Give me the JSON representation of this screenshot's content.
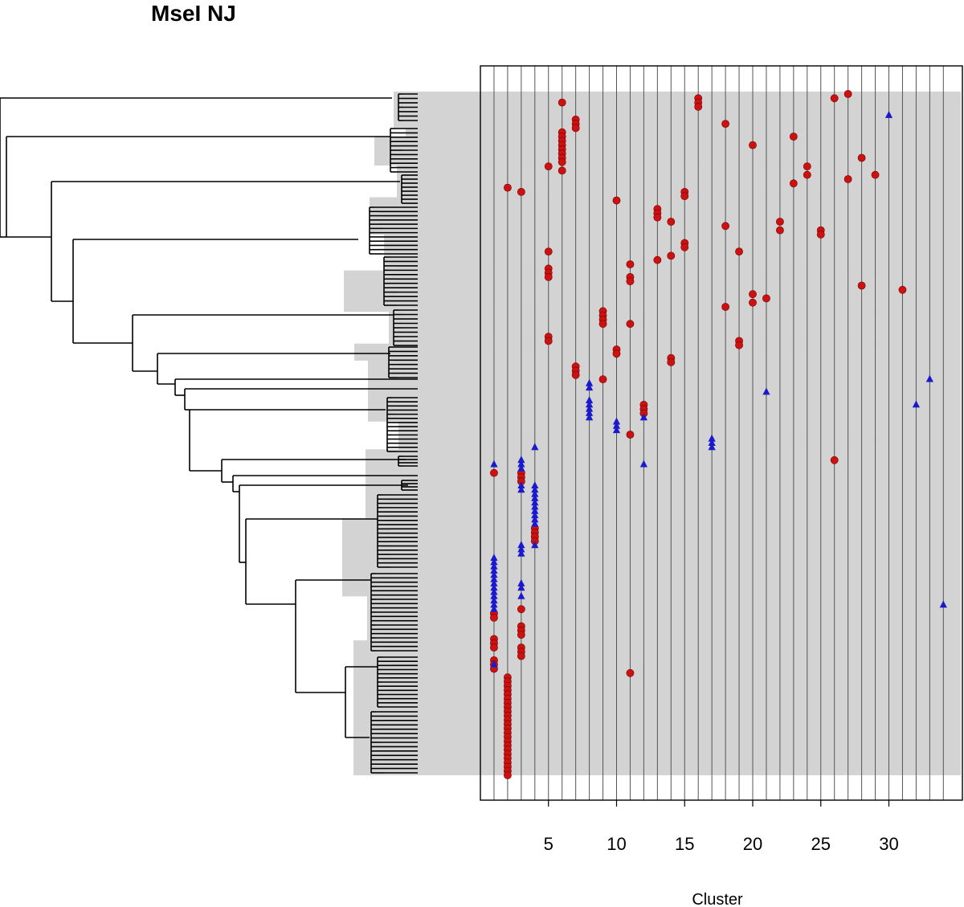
{
  "chart_data": {
    "type": "scatter",
    "title": "MseI NJ",
    "xlabel": "Cluster",
    "ylabel": "",
    "xlim": [
      0,
      35
    ],
    "x_ticks": [
      "5",
      "10",
      "15",
      "20",
      "25",
      "30"
    ],
    "grid": "vertical lines at every integer cluster 1–34",
    "legend": "none",
    "colors": {
      "red_marker": "#cc1111",
      "blue_marker": "#1a1acc",
      "band": "#d3d3d3",
      "grid": "#555555"
    },
    "marker_meaning": {
      "circle": "red",
      "triangle": "blue"
    },
    "y_axis_note": "rows correspond to leaves of the NJ tree (top = leaf 1, bottom = leaf 168)",
    "series": [
      {
        "name": "red circles",
        "marker": "circle",
        "points": [
          [
            6,
            2
          ],
          [
            16,
            1
          ],
          [
            16,
            2
          ],
          [
            16,
            3
          ],
          [
            26,
            1
          ],
          [
            27,
            0
          ],
          [
            7,
            6
          ],
          [
            7,
            7
          ],
          [
            7,
            8
          ],
          [
            18,
            7
          ],
          [
            6,
            9
          ],
          [
            6,
            10
          ],
          [
            6,
            11
          ],
          [
            6,
            12
          ],
          [
            6,
            13
          ],
          [
            6,
            14
          ],
          [
            6,
            15
          ],
          [
            6,
            16
          ],
          [
            20,
            12
          ],
          [
            23,
            10
          ],
          [
            28,
            15
          ],
          [
            24,
            17
          ],
          [
            24,
            19
          ],
          [
            5,
            17
          ],
          [
            6,
            18
          ],
          [
            2,
            22
          ],
          [
            3,
            23
          ],
          [
            23,
            21
          ],
          [
            27,
            20
          ],
          [
            29,
            19
          ],
          [
            10,
            25
          ],
          [
            13,
            27
          ],
          [
            13,
            28
          ],
          [
            13,
            29
          ],
          [
            15,
            23
          ],
          [
            15,
            24
          ],
          [
            14,
            30
          ],
          [
            18,
            31
          ],
          [
            22,
            30
          ],
          [
            22,
            32
          ],
          [
            25,
            32
          ],
          [
            25,
            33
          ],
          [
            15,
            35
          ],
          [
            15,
            36
          ],
          [
            19,
            37
          ],
          [
            5,
            37
          ],
          [
            5,
            41
          ],
          [
            5,
            42
          ],
          [
            5,
            43
          ],
          [
            11,
            40
          ],
          [
            11,
            43
          ],
          [
            11,
            44
          ],
          [
            13,
            39
          ],
          [
            14,
            38
          ],
          [
            28,
            45
          ],
          [
            31,
            46
          ],
          [
            20,
            47
          ],
          [
            20,
            49
          ],
          [
            21,
            48
          ],
          [
            18,
            50
          ],
          [
            9,
            51
          ],
          [
            9,
            52
          ],
          [
            9,
            53
          ],
          [
            9,
            54
          ],
          [
            11,
            54
          ],
          [
            5,
            57
          ],
          [
            5,
            58
          ],
          [
            19,
            58
          ],
          [
            19,
            59
          ],
          [
            10,
            60
          ],
          [
            10,
            61
          ],
          [
            14,
            62
          ],
          [
            14,
            63
          ],
          [
            7,
            64
          ],
          [
            7,
            65
          ],
          [
            7,
            66
          ],
          [
            9,
            67
          ],
          [
            12,
            73
          ],
          [
            12,
            74
          ],
          [
            12,
            75
          ],
          [
            11,
            80
          ],
          [
            26,
            86
          ],
          [
            1,
            89
          ],
          [
            3,
            89
          ],
          [
            3,
            90
          ],
          [
            3,
            91
          ],
          [
            4,
            102
          ],
          [
            4,
            103
          ],
          [
            4,
            104
          ],
          [
            4,
            105
          ],
          [
            1,
            122
          ],
          [
            1,
            123
          ],
          [
            3,
            121
          ],
          [
            3,
            125
          ],
          [
            3,
            126
          ],
          [
            3,
            127
          ],
          [
            1,
            128
          ],
          [
            1,
            129
          ],
          [
            1,
            130
          ],
          [
            3,
            130
          ],
          [
            3,
            131
          ],
          [
            3,
            132
          ],
          [
            1,
            133
          ],
          [
            1,
            134
          ],
          [
            1,
            135
          ],
          [
            11,
            136
          ],
          [
            2,
            137
          ],
          [
            2,
            138
          ],
          [
            2,
            139
          ],
          [
            2,
            140
          ],
          [
            2,
            141
          ],
          [
            2,
            142
          ],
          [
            2,
            143
          ],
          [
            2,
            144
          ],
          [
            2,
            145
          ],
          [
            2,
            146
          ],
          [
            2,
            147
          ],
          [
            2,
            148
          ],
          [
            2,
            149
          ],
          [
            2,
            150
          ],
          [
            2,
            151
          ],
          [
            2,
            152
          ],
          [
            2,
            153
          ],
          [
            2,
            154
          ],
          [
            2,
            155
          ],
          [
            2,
            156
          ],
          [
            2,
            157
          ],
          [
            2,
            158
          ],
          [
            2,
            159
          ],
          [
            2,
            160
          ]
        ]
      },
      {
        "name": "blue triangles",
        "marker": "triangle",
        "points": [
          [
            30,
            5
          ],
          [
            8,
            68
          ],
          [
            8,
            69
          ],
          [
            8,
            72
          ],
          [
            8,
            73
          ],
          [
            8,
            74
          ],
          [
            8,
            75
          ],
          [
            8,
            76
          ],
          [
            10,
            77
          ],
          [
            10,
            78
          ],
          [
            10,
            79
          ],
          [
            12,
            76
          ],
          [
            21,
            70
          ],
          [
            33,
            67
          ],
          [
            32,
            73
          ],
          [
            4,
            83
          ],
          [
            17,
            81
          ],
          [
            17,
            82
          ],
          [
            17,
            83
          ],
          [
            12,
            87
          ],
          [
            1,
            87
          ],
          [
            3,
            86
          ],
          [
            3,
            87
          ],
          [
            3,
            88
          ],
          [
            3,
            92
          ],
          [
            3,
            93
          ],
          [
            4,
            92
          ],
          [
            4,
            93
          ],
          [
            4,
            94
          ],
          [
            4,
            95
          ],
          [
            4,
            96
          ],
          [
            4,
            97
          ],
          [
            4,
            98
          ],
          [
            4,
            99
          ],
          [
            4,
            100
          ],
          [
            4,
            101
          ],
          [
            4,
            106
          ],
          [
            3,
            106
          ],
          [
            3,
            107
          ],
          [
            3,
            108
          ],
          [
            1,
            109
          ],
          [
            1,
            110
          ],
          [
            1,
            111
          ],
          [
            1,
            112
          ],
          [
            1,
            113
          ],
          [
            1,
            114
          ],
          [
            1,
            115
          ],
          [
            1,
            116
          ],
          [
            1,
            117
          ],
          [
            1,
            118
          ],
          [
            1,
            119
          ],
          [
            1,
            120
          ],
          [
            1,
            121
          ],
          [
            3,
            115
          ],
          [
            3,
            116
          ],
          [
            3,
            118
          ],
          [
            34,
            120
          ],
          [
            1,
            134
          ]
        ]
      }
    ],
    "band_groups_by_leaf": [
      [
        1,
        9
      ],
      [
        10,
        11
      ],
      [
        12,
        18
      ],
      [
        19,
        26
      ],
      [
        27,
        35
      ],
      [
        36,
        44
      ],
      [
        45,
        54
      ],
      [
        55,
        62
      ],
      [
        63,
        66
      ],
      [
        67,
        81
      ],
      [
        82,
        85
      ],
      [
        86,
        88
      ],
      [
        89,
        105
      ],
      [
        106,
        124
      ],
      [
        125,
        135
      ],
      [
        136,
        168
      ]
    ]
  }
}
